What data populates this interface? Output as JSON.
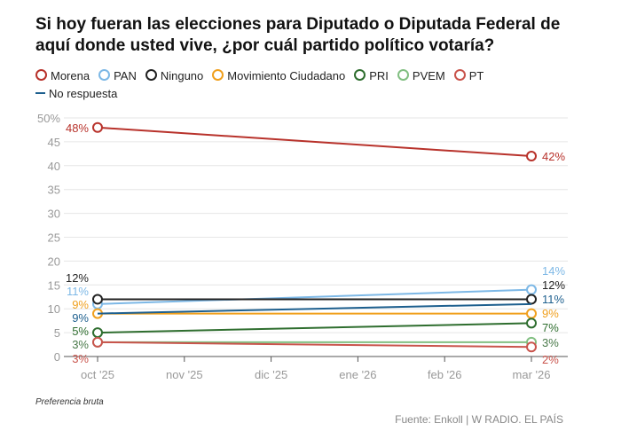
{
  "title": "Si hoy fueran las elecciones para Diputado o Diputada Federal de aquí donde usted vive, ¿por cuál partido político votaría?",
  "note": "Preferencia bruta",
  "source": "Fuente: Enkoll | W RADIO. EL PAÍS",
  "chart_data": {
    "type": "line",
    "x": [
      "oct '25",
      "nov '25",
      "dic '25",
      "ene '26",
      "feb '26",
      "mar '26"
    ],
    "ylim": [
      0,
      50
    ],
    "yticks": [
      "0",
      "5",
      "10",
      "15",
      "20",
      "25",
      "30",
      "35",
      "40",
      "45",
      "50%"
    ],
    "grid": true,
    "legend_position": "top",
    "series": [
      {
        "name": "Morena",
        "color": "#b8322b",
        "marker": true,
        "points": [
          {
            "x": "oct '25",
            "y": 48
          },
          {
            "x": "mar '26",
            "y": 42
          }
        ],
        "labels": [
          "48%",
          "42%"
        ]
      },
      {
        "name": "PAN",
        "color": "#7db8e6",
        "marker": true,
        "points": [
          {
            "x": "oct '25",
            "y": 11
          },
          {
            "x": "mar '26",
            "y": 14
          }
        ],
        "labels": [
          "11%",
          "14%"
        ]
      },
      {
        "name": "Ninguno",
        "color": "#222222",
        "marker": true,
        "points": [
          {
            "x": "oct '25",
            "y": 12
          },
          {
            "x": "mar '26",
            "y": 12
          }
        ],
        "labels": [
          "12%",
          "12%"
        ]
      },
      {
        "name": "Movimiento Ciudadano",
        "color": "#f0a01e",
        "marker": true,
        "points": [
          {
            "x": "oct '25",
            "y": 9
          },
          {
            "x": "mar '26",
            "y": 9
          }
        ],
        "labels": [
          "9%",
          "9%"
        ]
      },
      {
        "name": "PRI",
        "color": "#2f6e2f",
        "marker": true,
        "points": [
          {
            "x": "oct '25",
            "y": 5
          },
          {
            "x": "mar '26",
            "y": 7
          }
        ],
        "labels": [
          "5%",
          "7%"
        ]
      },
      {
        "name": "PVEM",
        "color": "#82bf82",
        "marker": true,
        "points": [
          {
            "x": "oct '25",
            "y": 3
          },
          {
            "x": "mar '26",
            "y": 3
          }
        ],
        "labels": [
          "3%",
          "3%"
        ]
      },
      {
        "name": "PT",
        "color": "#c9544c",
        "marker": true,
        "points": [
          {
            "x": "oct '25",
            "y": 3
          },
          {
            "x": "mar '26",
            "y": 2
          }
        ],
        "labels": [
          "3%",
          "2%"
        ]
      },
      {
        "name": "No respuesta",
        "color": "#1d5f8e",
        "marker": false,
        "points": [
          {
            "x": "oct '25",
            "y": 9
          },
          {
            "x": "mar '26",
            "y": 11
          }
        ],
        "labels": [
          "9%",
          "11%"
        ]
      }
    ]
  }
}
